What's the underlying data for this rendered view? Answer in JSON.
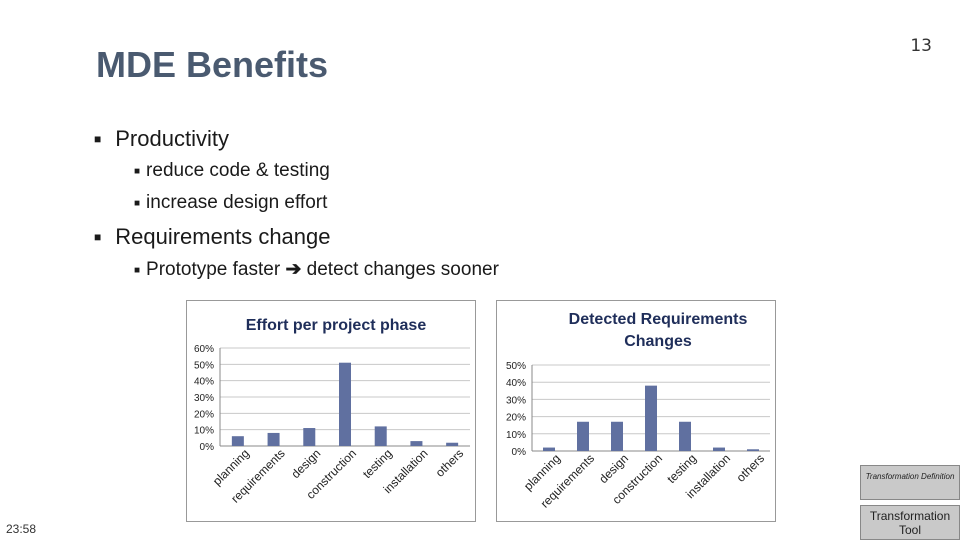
{
  "slide": {
    "title": "MDE Benefits",
    "page_number": "13",
    "clock": "23:58"
  },
  "bullets": {
    "productivity": "Productivity",
    "reduce": "reduce code & testing",
    "increase": "increase design effort",
    "requirements": "Requirements change",
    "prototype_a": "Prototype faster",
    "prototype_b": "detect changes sooner"
  },
  "tool_cards": {
    "definition": "Transformation Definition",
    "tool": "Transformation Tool"
  },
  "colors": {
    "bar": "#6070a0",
    "title": "#4a5a70"
  },
  "chart_data": [
    {
      "type": "bar",
      "title": "Effort per project phase",
      "categories": [
        "planning",
        "requirements",
        "design",
        "construction",
        "testing",
        "installation",
        "others"
      ],
      "values": [
        6,
        8,
        11,
        51,
        12,
        3,
        2
      ],
      "ylim": [
        0,
        60
      ],
      "yticks": [
        "0%",
        "10%",
        "20%",
        "30%",
        "40%",
        "50%",
        "60%"
      ],
      "grid": true,
      "legend": "none"
    },
    {
      "type": "bar",
      "title": "Detected Requirements Changes",
      "categories": [
        "planning",
        "requirements",
        "design",
        "construction",
        "testing",
        "installation",
        "others"
      ],
      "values": [
        2,
        17,
        17,
        38,
        17,
        2,
        1
      ],
      "ylim": [
        0,
        50
      ],
      "yticks": [
        "0%",
        "10%",
        "20%",
        "30%",
        "40%",
        "50%"
      ],
      "grid": true,
      "legend": "none"
    }
  ]
}
